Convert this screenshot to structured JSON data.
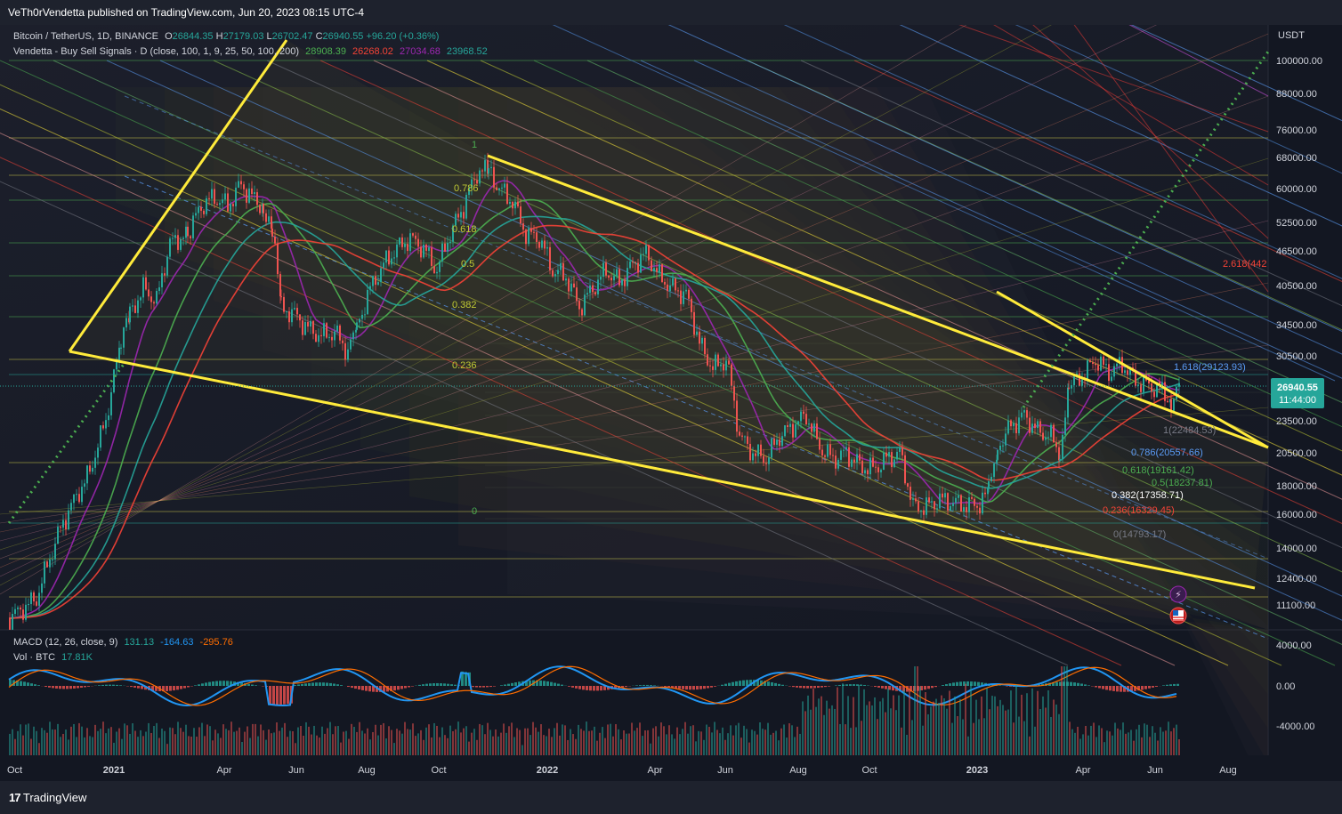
{
  "header": {
    "published": "VeTh0rVendetta published on TradingView.com, Jun 20, 2023 08:15 UTC-4"
  },
  "legend": {
    "symbol": "Bitcoin / TetherUS, 1D, BINANCE",
    "o_lbl": "O",
    "o": "26844.35",
    "h_lbl": "H",
    "h": "27179.03",
    "l_lbl": "L",
    "l": "26702.47",
    "c_lbl": "C",
    "c": "26940.55",
    "chg": "+96.20 (+0.36%)",
    "ind_name": "Vendetta - Buy Sell Signals · D (close, 100, 1, 9, 25, 50, 100, 200)",
    "ind_values": [
      {
        "v": "28908.39",
        "color": "#4caf50"
      },
      {
        "v": "26268.02",
        "color": "#f44336"
      },
      {
        "v": "27034.68",
        "color": "#9c27b0"
      },
      {
        "v": "23968.52",
        "color": "#26a69a"
      }
    ],
    "macd_name": "MACD (12, 26, close, 9)",
    "macd_values": [
      {
        "v": "131.13",
        "color": "#26a69a"
      },
      {
        "v": "-164.63",
        "color": "#2196f3"
      },
      {
        "v": "-295.76",
        "color": "#ff6d00"
      }
    ],
    "vol_name": "Vol · BTC",
    "vol_value": "17.81K"
  },
  "price_axis": {
    "currency": "USDT",
    "ticks": [
      "100000.00",
      "88000.00",
      "76000.00",
      "68000.00",
      "60000.00",
      "52500.00",
      "46500.00",
      "40500.00",
      "34500.00",
      "30500.00",
      "23500.00",
      "20500.00",
      "18000.00",
      "16000.00",
      "14000.00",
      "12400.00",
      "11100.00"
    ],
    "last_price": "26940.55",
    "countdown": "11:44:00"
  },
  "macd_axis": {
    "ticks": [
      "4000.00",
      "0.00",
      "-4000.00"
    ]
  },
  "time_axis": {
    "ticks": [
      "Oct",
      "2021",
      "Apr",
      "Jun",
      "Aug",
      "Oct",
      "2022",
      "Apr",
      "Jun",
      "Aug",
      "Oct",
      "2023",
      "Apr",
      "Jun",
      "Aug"
    ]
  },
  "fib_left": {
    "levels": [
      "1",
      "0.786",
      "0.618",
      "0.5",
      "0.382",
      "0.236",
      "0"
    ]
  },
  "fib_right": {
    "levels": [
      {
        "t": "2.618(442",
        "color": "#f44336"
      },
      {
        "t": "1.618(29123.93)",
        "color": "#5b9cf6"
      },
      {
        "t": "1(22484.53)",
        "color": "#787b86"
      },
      {
        "t": "0.786(20557.66)",
        "color": "#5b9cf6"
      },
      {
        "t": "0.618(19161.42)",
        "color": "#4caf50"
      },
      {
        "t": "0.5(18237.81)",
        "color": "#4caf50"
      },
      {
        "t": "0.382(17358.71)",
        "color": "#ffffff"
      },
      {
        "t": "0.236(16329.45)",
        "color": "#f44336"
      },
      {
        "t": "0(14793.17)",
        "color": "#787b86"
      }
    ]
  },
  "footer": {
    "brand": "TradingView"
  },
  "colors": {
    "bg": "#131722",
    "up": "#26a69a",
    "down": "#ef5350",
    "trend": "#ffeb3b",
    "dots": "#4caf50"
  }
}
